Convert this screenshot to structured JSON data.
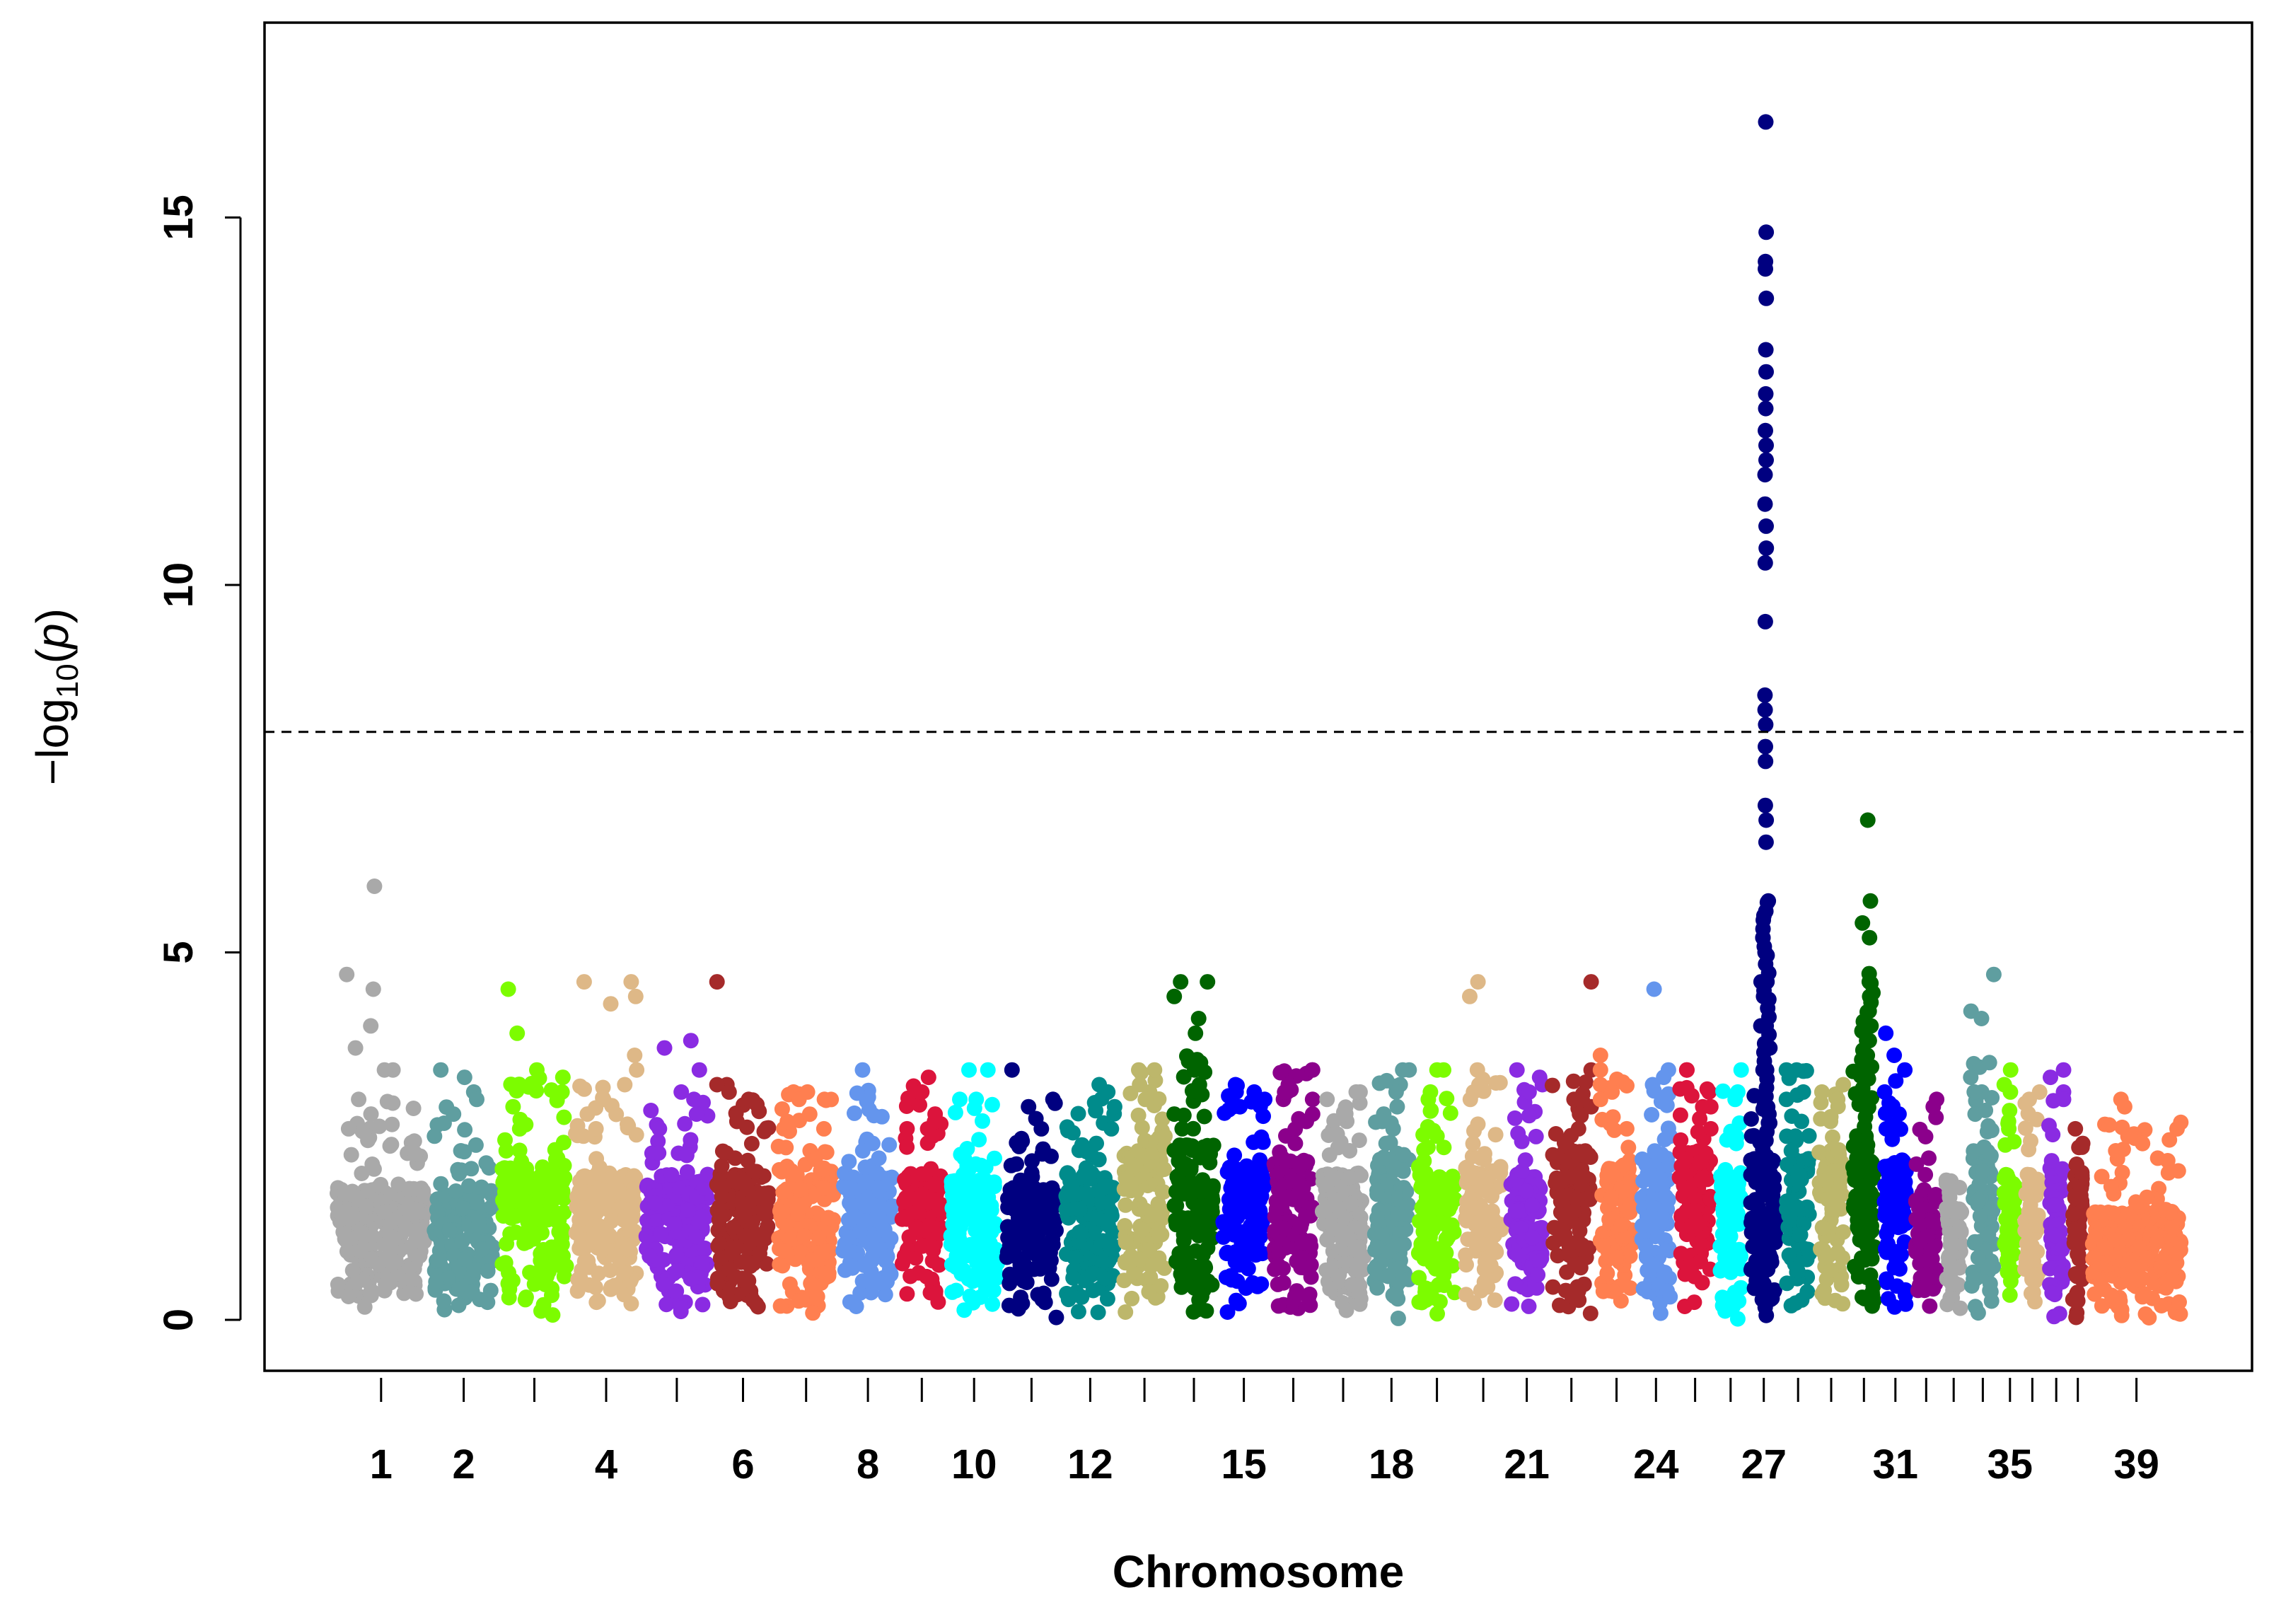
{
  "chart_data": {
    "type": "scatter",
    "title": "",
    "xlabel": "Chromosome",
    "ylabel": {
      "prefix": "−log",
      "sub": "10",
      "open": "(",
      "var": "p",
      "close": ")"
    },
    "ylim": [
      0,
      17.5
    ],
    "yticks": [
      0,
      5,
      10,
      15
    ],
    "threshold": 8,
    "threshold_style": "dashed",
    "xtick_labels": [
      "1",
      "2",
      "4",
      "6",
      "8",
      "10",
      "12",
      "15",
      "18",
      "21",
      "24",
      "27",
      "31",
      "35",
      "39"
    ],
    "chromosomes": [
      {
        "n": 1,
        "len": 122,
        "base": 1.8,
        "peak": 5.9,
        "color": "#A9A9A9",
        "tops": [
          5.9,
          4.7,
          4.5,
          4.0,
          3.7,
          3.4,
          3.4,
          3.0,
          2.6
        ]
      },
      {
        "n": 2,
        "len": 85,
        "base": 1.7,
        "peak": 3.4,
        "color": "#5F9EA0",
        "tops": [
          3.4,
          3.3,
          3.1,
          3.0,
          2.8,
          2.5,
          2.3
        ]
      },
      {
        "n": 3,
        "len": 92,
        "base": 2.1,
        "peak": 4.5,
        "color": "#7CFC00",
        "tops": [
          4.5,
          3.9,
          3.4,
          3.3,
          3.1,
          2.9,
          2.6,
          2.3,
          2.2
        ]
      },
      {
        "n": 4,
        "len": 88,
        "base": 2.0,
        "peak": 4.6,
        "color": "#DEB887",
        "tops": [
          4.6,
          4.6,
          4.4,
          4.3,
          3.6,
          3.4,
          3.2,
          2.8,
          2.6,
          2.5
        ]
      },
      {
        "n": 5,
        "len": 89,
        "base": 1.9,
        "peak": 3.8,
        "color": "#8A2BE2",
        "tops": [
          3.8,
          3.7,
          3.4,
          3.1,
          3.0,
          2.8,
          2.6
        ]
      },
      {
        "n": 6,
        "len": 77,
        "base": 2.0,
        "peak": 4.6,
        "color": "#A52A2A",
        "tops": [
          4.6,
          3.2,
          3.2,
          3.1,
          3.0,
          2.7,
          2.2
        ]
      },
      {
        "n": 7,
        "len": 81,
        "base": 2.1,
        "peak": 3.1,
        "color": "#FF7F50",
        "tops": [
          3.1,
          3.1,
          3.0,
          3.0,
          2.7,
          2.6
        ]
      },
      {
        "n": 8,
        "len": 74,
        "base": 2.0,
        "peak": 3.4,
        "color": "#6495ED",
        "tops": [
          3.4,
          2.4,
          2.3,
          2.2
        ]
      },
      {
        "n": 9,
        "len": 61,
        "base": 2.0,
        "peak": 3.3,
        "color": "#DC143C",
        "tops": [
          3.3,
          3.1,
          3.1,
          2.8,
          2.6,
          2.5
        ]
      },
      {
        "n": 10,
        "len": 70,
        "base": 1.9,
        "peak": 3.4,
        "color": "#00FFFF",
        "tops": [
          3.4,
          3.4,
          3.0,
          3.0,
          2.2,
          2.1
        ]
      },
      {
        "n": 11,
        "len": 74,
        "base": 1.8,
        "peak": 3.4,
        "color": "#000080",
        "tops": [
          3.4,
          3.0,
          2.9,
          2.6,
          2.1,
          2.0,
          1.7
        ]
      },
      {
        "n": 12,
        "len": 73,
        "base": 2.0,
        "peak": 3.2,
        "color": "#008B8B",
        "tops": [
          3.2,
          3.1,
          2.9,
          2.6,
          2.4
        ]
      },
      {
        "n": 13,
        "len": 63,
        "base": 2.3,
        "peak": 3.4,
        "color": "#BDB76B",
        "tops": [
          3.4,
          3.4,
          3.2,
          3.1,
          3.0,
          2.5
        ]
      },
      {
        "n": 14,
        "len": 61,
        "base": 2.4,
        "peak": 4.6,
        "color": "#006400",
        "tops": [
          4.6,
          4.6,
          4.4,
          4.1,
          3.9,
          3.5,
          3.4,
          3.2,
          2.8,
          2.6
        ]
      },
      {
        "n": 15,
        "len": 64,
        "base": 2.1,
        "peak": 3.2,
        "color": "#0000FF",
        "tops": [
          3.2,
          3.1,
          3.1,
          3.0,
          2.9
        ]
      },
      {
        "n": 16,
        "len": 60,
        "base": 2.2,
        "peak": 3.4,
        "color": "#8B008B",
        "tops": [
          3.4,
          3.4,
          3.2,
          3.1,
          3.0,
          2.8,
          2.7,
          2.4,
          2.2
        ]
      },
      {
        "n": 17,
        "len": 65,
        "base": 2.0,
        "peak": 3.1,
        "color": "#A9A9A9",
        "tops": [
          3.1,
          3.1,
          3.0,
          2.3
        ]
      },
      {
        "n": 18,
        "len": 56,
        "base": 2.2,
        "peak": 3.4,
        "color": "#5F9EA0",
        "tops": [
          3.4,
          3.4,
          3.2,
          3.1,
          2.9,
          2.7,
          2.4
        ]
      },
      {
        "n": 19,
        "len": 58,
        "base": 2.0,
        "peak": 3.4,
        "color": "#7CFC00",
        "tops": [
          3.4,
          3.4,
          3.1,
          3.0,
          2.5
        ]
      },
      {
        "n": 20,
        "len": 58,
        "base": 2.1,
        "peak": 4.6,
        "color": "#DEB887",
        "tops": [
          4.6,
          4.4,
          3.4,
          3.2,
          3.1,
          3.0
        ]
      },
      {
        "n": 21,
        "len": 51,
        "base": 2.0,
        "peak": 3.4,
        "color": "#8A2BE2",
        "tops": [
          3.4,
          3.3,
          3.2,
          3.1
        ]
      },
      {
        "n": 22,
        "len": 61,
        "base": 2.3,
        "peak": 4.6,
        "color": "#A52A2A",
        "tops": [
          4.6,
          3.4,
          3.0,
          2.9,
          2.8,
          2.6
        ]
      },
      {
        "n": 23,
        "len": 52,
        "base": 2.1,
        "peak": 3.6,
        "color": "#FF7F50",
        "tops": [
          3.6,
          3.4,
          3.2,
          3.1,
          3.0,
          2.6
        ]
      },
      {
        "n": 24,
        "len": 47,
        "base": 2.2,
        "peak": 4.5,
        "color": "#6495ED",
        "tops": [
          4.5,
          3.4,
          3.3,
          3.2,
          2.5,
          2.1
        ]
      },
      {
        "n": 25,
        "len": 51,
        "base": 2.3,
        "peak": 3.4,
        "color": "#DC143C",
        "tops": [
          3.4,
          3.4,
          3.1,
          2.9,
          2.6
        ]
      },
      {
        "n": 26,
        "len": 38,
        "base": 2.0,
        "peak": 3.4,
        "color": "#00FFFF",
        "tops": [
          3.4,
          3.1,
          3.0,
          2.4
        ]
      },
      {
        "n": 27,
        "len": 45,
        "base": 2.2,
        "peak": 16.3,
        "color": "#000080",
        "tops": [
          16.3,
          14.8,
          14.4,
          14.3,
          13.9,
          13.2,
          12.9,
          12.6,
          12.4,
          12.1,
          11.9,
          11.7,
          11.5,
          11.1,
          10.8,
          10.5,
          10.3,
          9.5,
          8.5,
          8.3,
          8.1,
          7.8,
          7.6,
          7.0,
          6.8,
          6.5,
          5.7,
          5.5,
          5.2,
          5.0,
          4.6,
          4.4,
          4.0,
          3.7,
          3.4
        ]
      },
      {
        "n": 28,
        "len": 41,
        "base": 2.2,
        "peak": 3.4,
        "color": "#008B8B",
        "tops": [
          3.4,
          3.4,
          3.1,
          3.0,
          2.7,
          2.5,
          2.3
        ]
      },
      {
        "n": 29,
        "len": 42,
        "base": 2.3,
        "peak": 3.2,
        "color": "#BDB76B",
        "tops": [
          3.2,
          3.1,
          3.0,
          2.7
        ]
      },
      {
        "n": 30,
        "len": 40,
        "base": 2.5,
        "peak": 6.8,
        "color": "#006400",
        "tops": [
          6.8,
          5.7,
          5.4,
          5.2,
          4.6,
          4.4,
          4.2,
          4.0,
          3.8,
          3.6,
          3.4
        ]
      },
      {
        "n": 31,
        "len": 39,
        "base": 2.2,
        "peak": 3.9,
        "color": "#0000FF",
        "tops": [
          3.9,
          3.6,
          3.4,
          3.1,
          2.8,
          2.6
        ]
      },
      {
        "n": 32,
        "len": 38,
        "base": 1.7,
        "peak": 3.0,
        "color": "#8B008B",
        "tops": [
          3.0,
          2.9,
          2.2
        ]
      },
      {
        "n": 33,
        "len": 31,
        "base": 1.6,
        "peak": 1.9,
        "color": "#A9A9A9",
        "tops": [
          1.9,
          1.8
        ]
      },
      {
        "n": 34,
        "len": 42,
        "base": 2.3,
        "peak": 4.7,
        "color": "#5F9EA0",
        "tops": [
          4.7,
          4.2,
          4.1,
          3.5,
          3.3,
          3.1,
          3.1,
          2.8
        ]
      },
      {
        "n": 35,
        "len": 26,
        "base": 2.0,
        "peak": 3.4,
        "color": "#7CFC00",
        "tops": [
          3.4,
          3.2,
          3.1,
          2.7
        ]
      },
      {
        "n": 36,
        "len": 30,
        "base": 2.0,
        "peak": 3.1,
        "color": "#DEB887",
        "tops": [
          3.1,
          3.0
        ]
      },
      {
        "n": 37,
        "len": 30,
        "base": 2.0,
        "peak": 3.4,
        "color": "#8A2BE2",
        "tops": [
          3.4,
          3.3,
          3.1,
          3.0
        ]
      },
      {
        "n": 38,
        "len": 24,
        "base": 2.0,
        "peak": 2.6,
        "color": "#A52A2A",
        "tops": [
          2.6,
          2.4
        ]
      },
      {
        "n": 39,
        "len": 123,
        "base": 1.5,
        "peak": 3.0,
        "color": "#FF7F50",
        "tops": [
          3.0,
          2.9,
          2.6,
          2.5,
          2.3,
          2.2,
          2.0
        ]
      }
    ]
  }
}
